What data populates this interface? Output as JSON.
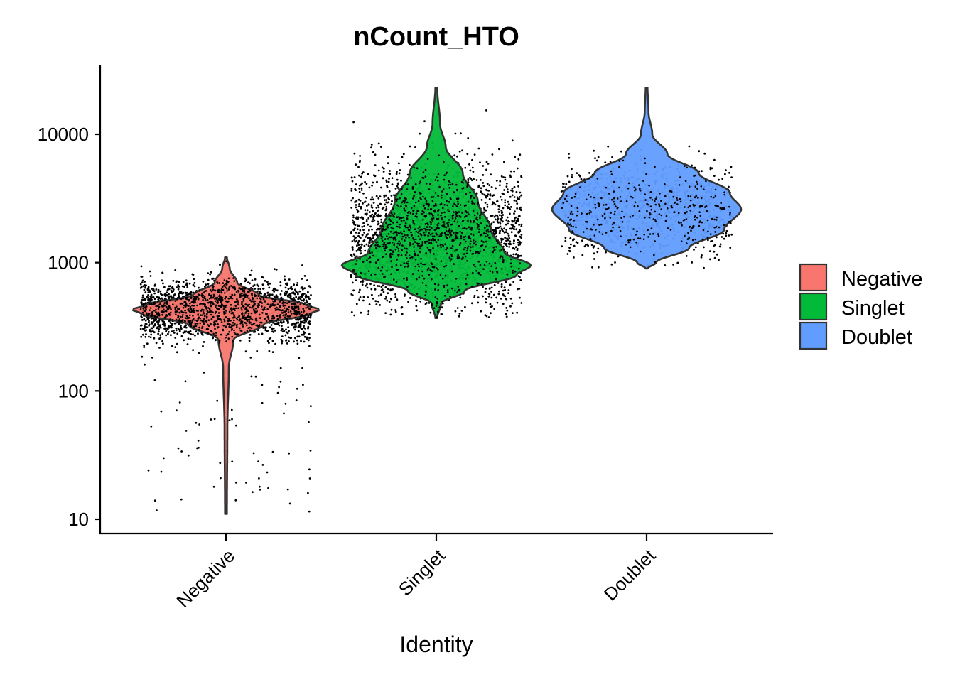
{
  "chart_data": {
    "type": "violin",
    "title": "nCount_HTO",
    "xlabel": "Identity",
    "ylabel": "",
    "y_scale": "log10",
    "ylim": [
      8,
      30000
    ],
    "y_ticks": [
      10,
      100,
      1000,
      10000
    ],
    "y_tick_labels": [
      "10",
      "100",
      "1000",
      "10000"
    ],
    "categories": [
      "Negative",
      "Singlet",
      "Doublet"
    ],
    "legend": {
      "position": "right",
      "entries": [
        "Negative",
        "Singlet",
        "Doublet"
      ]
    },
    "grid": false,
    "series": [
      {
        "name": "Negative",
        "color": "#F8766D",
        "min": 11,
        "max": 1100,
        "mode": 430,
        "violin_profile": [
          [
            11,
            0.01
          ],
          [
            50,
            0.015
          ],
          [
            150,
            0.03
          ],
          [
            250,
            0.08
          ],
          [
            330,
            0.4
          ],
          [
            400,
            0.9
          ],
          [
            430,
            1.0
          ],
          [
            470,
            0.85
          ],
          [
            560,
            0.35
          ],
          [
            700,
            0.12
          ],
          [
            900,
            0.04
          ],
          [
            1100,
            0.01
          ]
        ],
        "point_count": 9000,
        "point_median": 430,
        "point_min": 11,
        "point_max": 1100
      },
      {
        "name": "Singlet",
        "color": "#00BA38",
        "min": 370,
        "max": 23000,
        "mode": 950,
        "violin_profile": [
          [
            370,
            0.01
          ],
          [
            480,
            0.05
          ],
          [
            600,
            0.3
          ],
          [
            800,
            0.85
          ],
          [
            950,
            1.0
          ],
          [
            1200,
            0.72
          ],
          [
            1800,
            0.58
          ],
          [
            3000,
            0.44
          ],
          [
            5000,
            0.28
          ],
          [
            8000,
            0.1
          ],
          [
            12000,
            0.04
          ],
          [
            23000,
            0.01
          ]
        ],
        "point_count": 8000,
        "point_median": 1600,
        "point_min": 370,
        "point_max": 23000
      },
      {
        "name": "Doublet",
        "color": "#619CFF",
        "min": 900,
        "max": 23000,
        "mode": 2600,
        "violin_profile": [
          [
            900,
            0.01
          ],
          [
            1000,
            0.1
          ],
          [
            1300,
            0.45
          ],
          [
            1800,
            0.82
          ],
          [
            2600,
            1.0
          ],
          [
            3500,
            0.88
          ],
          [
            5000,
            0.55
          ],
          [
            7000,
            0.22
          ],
          [
            10000,
            0.06
          ],
          [
            15000,
            0.02
          ],
          [
            23000,
            0.01
          ]
        ],
        "point_count": 3200,
        "point_median": 2600,
        "point_min": 900,
        "point_max": 23000
      }
    ]
  }
}
